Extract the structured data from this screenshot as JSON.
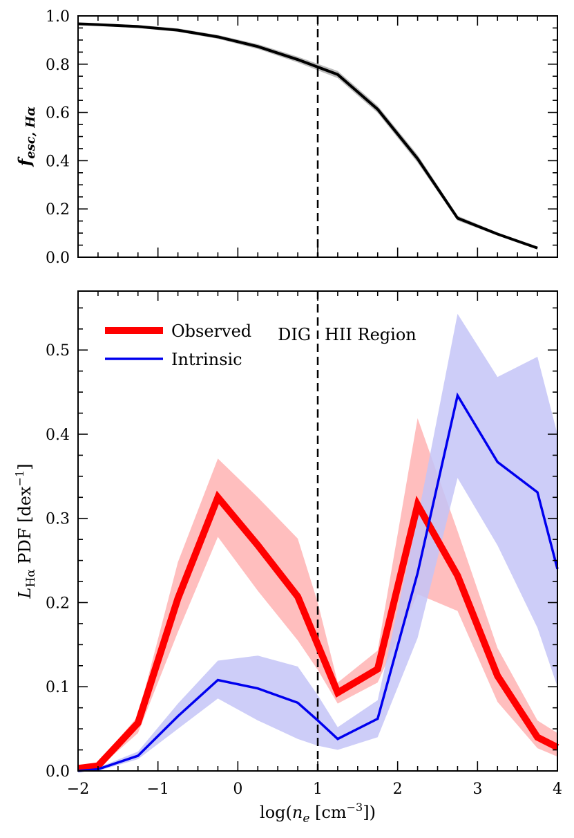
{
  "chart_data": [
    {
      "type": "line",
      "panel": "top",
      "ylabel_main": "f",
      "ylabel_sub": "esc, Hα",
      "xlim": [
        -2,
        4
      ],
      "ylim": [
        0,
        1.0
      ],
      "xticks": [
        -2,
        -1,
        0,
        1,
        2,
        3,
        4
      ],
      "yticks": [
        0.0,
        0.2,
        0.4,
        0.6,
        0.8,
        1.0
      ],
      "ytick_labels": [
        "0.0",
        "0.2",
        "0.4",
        "0.6",
        "0.8",
        "1.0"
      ],
      "vline_x": 1,
      "series": [
        {
          "name": "fesc",
          "color": "#000000",
          "band_color": "#bbbbbb",
          "x": [
            -2.0,
            -1.75,
            -1.25,
            -0.75,
            -0.25,
            0.25,
            0.75,
            1.25,
            1.75,
            2.25,
            2.75,
            3.25,
            3.75
          ],
          "values": [
            0.967,
            0.964,
            0.956,
            0.941,
            0.913,
            0.873,
            0.819,
            0.757,
            0.613,
            0.408,
            0.162,
            0.096,
            0.038
          ],
          "lower": [
            0.962,
            0.959,
            0.95,
            0.934,
            0.905,
            0.863,
            0.807,
            0.742,
            0.598,
            0.392,
            0.152,
            0.09,
            0.034
          ],
          "upper": [
            0.972,
            0.969,
            0.962,
            0.948,
            0.921,
            0.883,
            0.831,
            0.772,
            0.628,
            0.424,
            0.172,
            0.102,
            0.042
          ]
        }
      ]
    },
    {
      "type": "line",
      "panel": "bottom",
      "xlabel_pre": "log(",
      "xlabel_var": "n",
      "xlabel_sub": "e",
      "xlabel_unit": " [cm",
      "xlabel_exp": "−3",
      "xlabel_post": "])",
      "ylabel_main": "L",
      "ylabel_sub": "Hα",
      "ylabel_rest": " PDF [dex",
      "ylabel_exp": "−1",
      "ylabel_end": "]",
      "xlim": [
        -2,
        4
      ],
      "ylim": [
        0,
        0.57
      ],
      "xticks": [
        -2,
        -1,
        0,
        1,
        2,
        3,
        4
      ],
      "xtick_labels": [
        "−2",
        "−1",
        "0",
        "1",
        "2",
        "3",
        "4"
      ],
      "yticks": [
        0.0,
        0.1,
        0.2,
        0.3,
        0.4,
        0.5
      ],
      "ytick_labels": [
        "0.0",
        "0.1",
        "0.2",
        "0.3",
        "0.4",
        "0.5"
      ],
      "vline_x": 1,
      "annotations": {
        "left": "DIG",
        "right": "HII Region"
      },
      "legend": {
        "observed": "Observed",
        "intrinsic": "Intrinsic",
        "position": "top-left"
      },
      "series": [
        {
          "name": "Observed",
          "color": "#ff0000",
          "band_color": "#ffb3b3",
          "x": [
            -2.0,
            -1.75,
            -1.25,
            -0.75,
            -0.25,
            0.25,
            0.75,
            1.0,
            1.25,
            1.75,
            2.25,
            2.75,
            3.25,
            3.75,
            4.0
          ],
          "values": [
            0.003,
            0.006,
            0.057,
            0.205,
            0.325,
            0.268,
            0.207,
            0.15,
            0.093,
            0.121,
            0.316,
            0.232,
            0.113,
            0.04,
            0.028
          ],
          "lower": [
            0.001,
            0.003,
            0.045,
            0.165,
            0.278,
            0.214,
            0.155,
            0.12,
            0.08,
            0.105,
            0.21,
            0.19,
            0.082,
            0.027,
            0.017
          ],
          "upper": [
            0.006,
            0.01,
            0.065,
            0.248,
            0.371,
            0.325,
            0.276,
            0.2,
            0.105,
            0.143,
            0.419,
            0.285,
            0.146,
            0.06,
            0.045
          ]
        },
        {
          "name": "Intrinsic",
          "color": "#0000ee",
          "band_color": "#c4c4f7",
          "x": [
            -2.0,
            -1.75,
            -1.25,
            -0.75,
            -0.25,
            0.25,
            0.75,
            1.0,
            1.25,
            1.75,
            2.25,
            2.75,
            3.25,
            3.75,
            4.0
          ],
          "values": [
            0.0,
            0.002,
            0.018,
            0.065,
            0.108,
            0.098,
            0.081,
            0.06,
            0.038,
            0.062,
            0.235,
            0.446,
            0.367,
            0.331,
            0.24
          ],
          "lower": [
            0.0,
            0.0,
            0.014,
            0.05,
            0.086,
            0.06,
            0.038,
            0.03,
            0.025,
            0.04,
            0.158,
            0.348,
            0.268,
            0.17,
            0.1
          ],
          "upper": [
            0.002,
            0.004,
            0.023,
            0.08,
            0.131,
            0.137,
            0.124,
            0.09,
            0.052,
            0.084,
            0.3,
            0.543,
            0.468,
            0.492,
            0.4
          ]
        }
      ]
    }
  ]
}
